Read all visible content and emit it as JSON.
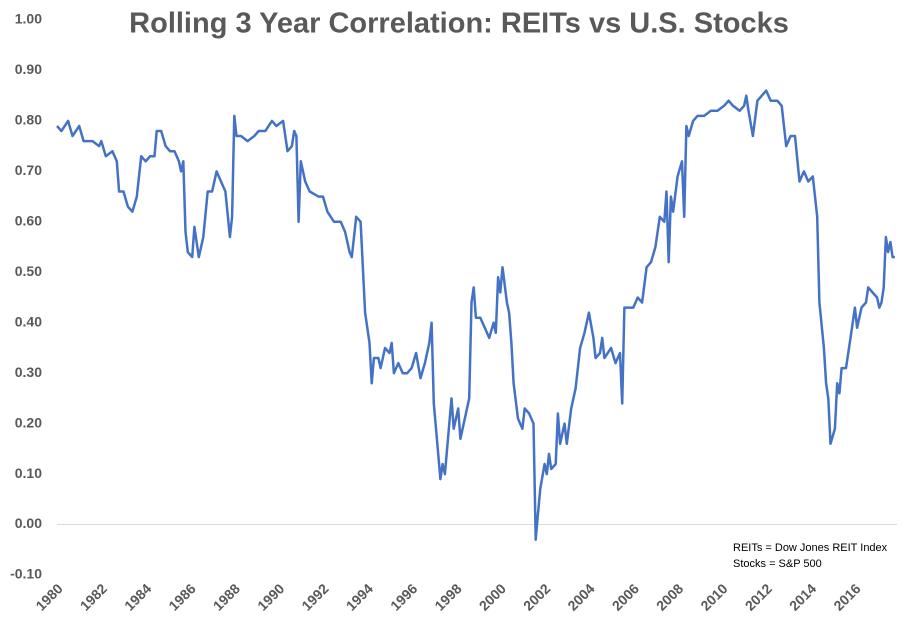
{
  "chart_data": {
    "type": "line",
    "title": "Rolling 3 Year Correlation: REITs vs U.S. Stocks",
    "annotation": [
      "REITs = Dow Jones REIT Index",
      "Stocks = S&P 500"
    ],
    "x": [
      1980.0,
      1980.2,
      1980.5,
      1980.7,
      1981.0,
      1981.2,
      1981.6,
      1981.9,
      1982.0,
      1982.2,
      1982.5,
      1982.7,
      1982.8,
      1983.0,
      1983.2,
      1983.4,
      1983.6,
      1983.8,
      1984.0,
      1984.2,
      1984.4,
      1984.5,
      1984.7,
      1984.9,
      1985.1,
      1985.3,
      1985.5,
      1985.6,
      1985.7,
      1985.8,
      1985.9,
      1986.1,
      1986.2,
      1986.4,
      1986.6,
      1986.8,
      1987.0,
      1987.2,
      1987.4,
      1987.6,
      1987.8,
      1987.9,
      1988.0,
      1988.1,
      1988.3,
      1988.6,
      1988.9,
      1989.1,
      1989.4,
      1989.7,
      1989.9,
      1990.2,
      1990.4,
      1990.6,
      1990.7,
      1990.8,
      1990.9,
      1991.0,
      1991.2,
      1991.4,
      1991.8,
      1992.0,
      1992.2,
      1992.5,
      1992.8,
      1993.0,
      1993.2,
      1993.3,
      1993.5,
      1993.7,
      1993.9,
      1994.1,
      1994.2,
      1994.3,
      1994.5,
      1994.6,
      1994.8,
      1995.0,
      1995.1,
      1995.2,
      1995.4,
      1995.6,
      1995.8,
      1996.0,
      1996.2,
      1996.4,
      1996.6,
      1996.8,
      1996.9,
      1997.0,
      1997.1,
      1997.3,
      1997.4,
      1997.5,
      1997.7,
      1997.8,
      1997.9,
      1998.1,
      1998.2,
      1998.4,
      1998.6,
      1998.7,
      1998.8,
      1998.9,
      1999.1,
      1999.3,
      1999.5,
      1999.7,
      1999.8,
      1999.9,
      2000.0,
      2000.1,
      2000.3,
      2000.4,
      2000.5,
      2000.6,
      2000.8,
      2001.0,
      2001.1,
      2001.3,
      2001.5,
      2001.6,
      2001.7,
      2001.8,
      2002.0,
      2002.1,
      2002.2,
      2002.3,
      2002.5,
      2002.6,
      2002.7,
      2002.9,
      2003.0,
      2003.2,
      2003.4,
      2003.6,
      2003.8,
      2004.0,
      2004.2,
      2004.3,
      2004.5,
      2004.6,
      2004.7,
      2005.0,
      2005.2,
      2005.4,
      2005.5,
      2005.6,
      2005.8,
      2006.0,
      2006.2,
      2006.4,
      2006.6,
      2006.8,
      2007.0,
      2007.2,
      2007.4,
      2007.5,
      2007.6,
      2007.7,
      2007.8,
      2008.0,
      2008.2,
      2008.3,
      2008.4,
      2008.5,
      2008.7,
      2008.9,
      2009.2,
      2009.5,
      2009.8,
      2010.1,
      2010.3,
      2010.5,
      2010.8,
      2011.0,
      2011.1,
      2011.2,
      2011.4,
      2011.6,
      2011.8,
      2012.0,
      2012.2,
      2012.5,
      2012.7,
      2012.9,
      2013.1,
      2013.3,
      2013.5,
      2013.7,
      2013.9,
      2014.1,
      2014.3,
      2014.4,
      2014.6,
      2014.7,
      2014.8,
      2014.9,
      2015.1,
      2015.2,
      2015.3,
      2015.4,
      2015.6,
      2015.8,
      2016.0,
      2016.1,
      2016.3,
      2016.5,
      2016.6,
      2016.8,
      2017.0,
      2017.1,
      2017.2,
      2017.3,
      2017.4,
      2017.5,
      2017.6,
      2017.7,
      2017.8
    ],
    "series": [
      {
        "color": "#4472c4",
        "values": [
          0.79,
          0.78,
          0.8,
          0.77,
          0.79,
          0.76,
          0.76,
          0.75,
          0.76,
          0.73,
          0.74,
          0.72,
          0.66,
          0.66,
          0.63,
          0.62,
          0.65,
          0.73,
          0.72,
          0.73,
          0.73,
          0.78,
          0.78,
          0.75,
          0.74,
          0.74,
          0.72,
          0.7,
          0.72,
          0.58,
          0.54,
          0.53,
          0.59,
          0.53,
          0.57,
          0.66,
          0.66,
          0.7,
          0.68,
          0.66,
          0.57,
          0.61,
          0.81,
          0.77,
          0.77,
          0.76,
          0.77,
          0.78,
          0.78,
          0.8,
          0.79,
          0.8,
          0.74,
          0.75,
          0.78,
          0.77,
          0.6,
          0.72,
          0.68,
          0.66,
          0.65,
          0.65,
          0.62,
          0.6,
          0.6,
          0.58,
          0.54,
          0.53,
          0.61,
          0.6,
          0.42,
          0.36,
          0.28,
          0.33,
          0.33,
          0.31,
          0.35,
          0.34,
          0.36,
          0.3,
          0.32,
          0.3,
          0.3,
          0.31,
          0.34,
          0.29,
          0.32,
          0.36,
          0.4,
          0.24,
          0.19,
          0.09,
          0.12,
          0.1,
          0.2,
          0.25,
          0.19,
          0.23,
          0.17,
          0.21,
          0.25,
          0.44,
          0.47,
          0.41,
          0.41,
          0.39,
          0.37,
          0.4,
          0.38,
          0.49,
          0.46,
          0.51,
          0.44,
          0.42,
          0.36,
          0.28,
          0.21,
          0.19,
          0.23,
          0.22,
          0.2,
          -0.03,
          0.02,
          0.07,
          0.12,
          0.1,
          0.14,
          0.11,
          0.12,
          0.22,
          0.16,
          0.2,
          0.16,
          0.23,
          0.27,
          0.35,
          0.38,
          0.42,
          0.37,
          0.33,
          0.34,
          0.37,
          0.33,
          0.35,
          0.32,
          0.34,
          0.24,
          0.43,
          0.43,
          0.43,
          0.45,
          0.44,
          0.51,
          0.52,
          0.55,
          0.61,
          0.6,
          0.66,
          0.52,
          0.65,
          0.62,
          0.69,
          0.72,
          0.61,
          0.79,
          0.77,
          0.8,
          0.81,
          0.81,
          0.82,
          0.82,
          0.83,
          0.84,
          0.83,
          0.82,
          0.83,
          0.85,
          0.82,
          0.77,
          0.84,
          0.85,
          0.86,
          0.84,
          0.84,
          0.83,
          0.75,
          0.77,
          0.77,
          0.68,
          0.7,
          0.68,
          0.69,
          0.61,
          0.44,
          0.35,
          0.28,
          0.25,
          0.16,
          0.19,
          0.28,
          0.26,
          0.31,
          0.31,
          0.37,
          0.43,
          0.39,
          0.43,
          0.44,
          0.47,
          0.46,
          0.45,
          0.43,
          0.44,
          0.47,
          0.57,
          0.54,
          0.56,
          0.53,
          0.53
        ]
      }
    ],
    "xlim": [
      1980,
      2017.9
    ],
    "xticks": [
      1980,
      1982,
      1984,
      1986,
      1988,
      1990,
      1992,
      1994,
      1996,
      1998,
      2000,
      2002,
      2004,
      2006,
      2008,
      2010,
      2012,
      2014,
      2016
    ],
    "ylim": [
      -0.1,
      1.0
    ],
    "yticks": [
      {
        "value": -0.1,
        "label": "-0.10"
      },
      {
        "value": 0,
        "label": "0.00"
      },
      {
        "value": 0.1,
        "label": "0.10"
      },
      {
        "value": 0.2,
        "label": "0.20"
      },
      {
        "value": 0.3,
        "label": "0.30"
      },
      {
        "value": 0.4,
        "label": "0.40"
      },
      {
        "value": 0.5,
        "label": "0.50"
      },
      {
        "value": 0.6,
        "label": "0.60"
      },
      {
        "value": 0.7,
        "label": "0.70"
      },
      {
        "value": 0.8,
        "label": "0.80"
      },
      {
        "value": 0.9,
        "label": "0.90"
      },
      {
        "value": 1.0,
        "label": "1.00"
      }
    ],
    "grid": false
  }
}
